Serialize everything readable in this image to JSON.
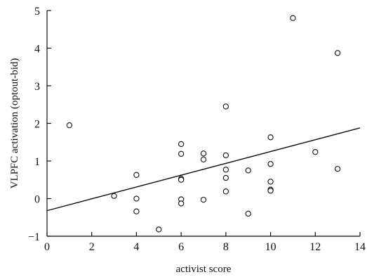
{
  "chart_data": {
    "type": "scatter",
    "title": "",
    "xlabel": "activist score",
    "ylabel": "VLPFC activation (optout-bid)",
    "xlim": [
      0,
      14
    ],
    "ylim": [
      -1,
      5
    ],
    "xticks": [
      0,
      2,
      4,
      6,
      8,
      10,
      12,
      14
    ],
    "yticks": [
      -1,
      0,
      1,
      2,
      3,
      4,
      5
    ],
    "grid": false,
    "points": [
      {
        "x": 1,
        "y": 1.95
      },
      {
        "x": 3,
        "y": 0.07
      },
      {
        "x": 4,
        "y": 0.63
      },
      {
        "x": 4,
        "y": 0.0
      },
      {
        "x": 4,
        "y": -0.34
      },
      {
        "x": 5,
        "y": -0.82
      },
      {
        "x": 6,
        "y": 1.45
      },
      {
        "x": 6,
        "y": 1.19
      },
      {
        "x": 6,
        "y": 0.53
      },
      {
        "x": 6,
        "y": 0.5
      },
      {
        "x": 6,
        "y": -0.02
      },
      {
        "x": 6,
        "y": -0.13
      },
      {
        "x": 7,
        "y": 1.2
      },
      {
        "x": 7,
        "y": 1.04
      },
      {
        "x": 7,
        "y": -0.03
      },
      {
        "x": 8,
        "y": 2.45
      },
      {
        "x": 8,
        "y": 1.15
      },
      {
        "x": 8,
        "y": 0.77
      },
      {
        "x": 8,
        "y": 0.55
      },
      {
        "x": 8,
        "y": 0.19
      },
      {
        "x": 9,
        "y": 0.75
      },
      {
        "x": 9,
        "y": -0.4
      },
      {
        "x": 10,
        "y": 1.63
      },
      {
        "x": 10,
        "y": 0.92
      },
      {
        "x": 10,
        "y": 0.45
      },
      {
        "x": 10,
        "y": 0.24
      },
      {
        "x": 10,
        "y": 0.21
      },
      {
        "x": 11,
        "y": 4.8
      },
      {
        "x": 12,
        "y": 1.24
      },
      {
        "x": 13,
        "y": 3.87
      },
      {
        "x": 13,
        "y": 0.79
      }
    ],
    "fit_line": {
      "x": [
        0,
        14
      ],
      "y": [
        -0.32,
        1.88
      ]
    }
  }
}
